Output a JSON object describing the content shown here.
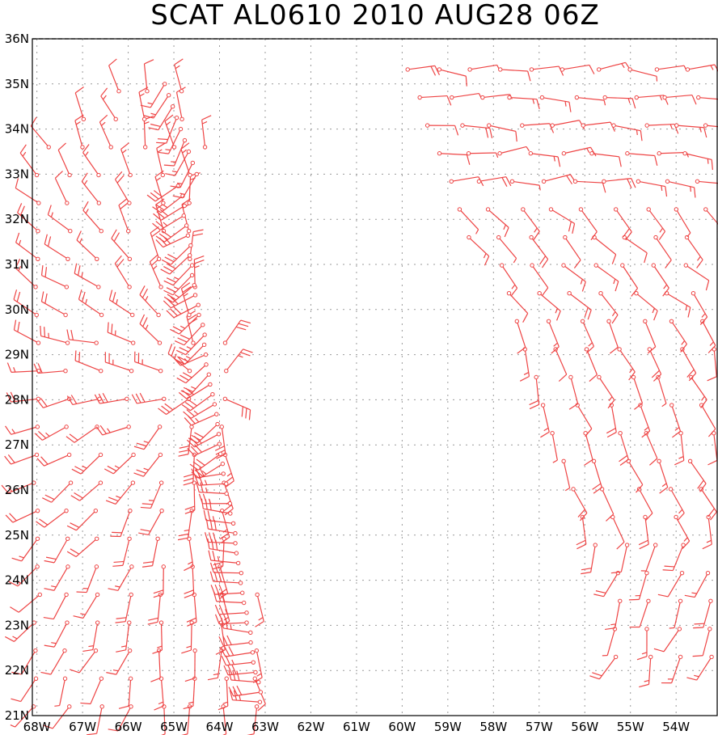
{
  "title": "SCAT AL0610 2010 AUG28 06Z",
  "colors": {
    "barb": "#ee4444",
    "grid": "#9a9a9a",
    "frame": "#000000"
  },
  "map": {
    "lon_range": [
      -68.1,
      -53.1
    ],
    "lat_range": [
      21,
      36
    ],
    "lat_labels": [
      "36N",
      "35N",
      "34N",
      "33N",
      "32N",
      "31N",
      "30N",
      "29N",
      "28N",
      "27N",
      "26N",
      "25N",
      "24N",
      "23N",
      "22N",
      "21N"
    ],
    "lat_values": [
      36,
      35,
      34,
      33,
      32,
      31,
      30,
      29,
      28,
      27,
      26,
      25,
      24,
      23,
      22,
      21
    ],
    "lon_labels": [
      "68W",
      "67W",
      "66W",
      "65W",
      "64W",
      "63W",
      "62W",
      "61W",
      "60W",
      "59W",
      "58W",
      "57W",
      "56W",
      "55W",
      "54W"
    ],
    "lon_values": [
      -68,
      -67,
      -66,
      -65,
      -64,
      -63,
      -62,
      -61,
      -60,
      -59,
      -58,
      -57,
      -56,
      -55,
      -54
    ],
    "grid": "dotted"
  }
}
